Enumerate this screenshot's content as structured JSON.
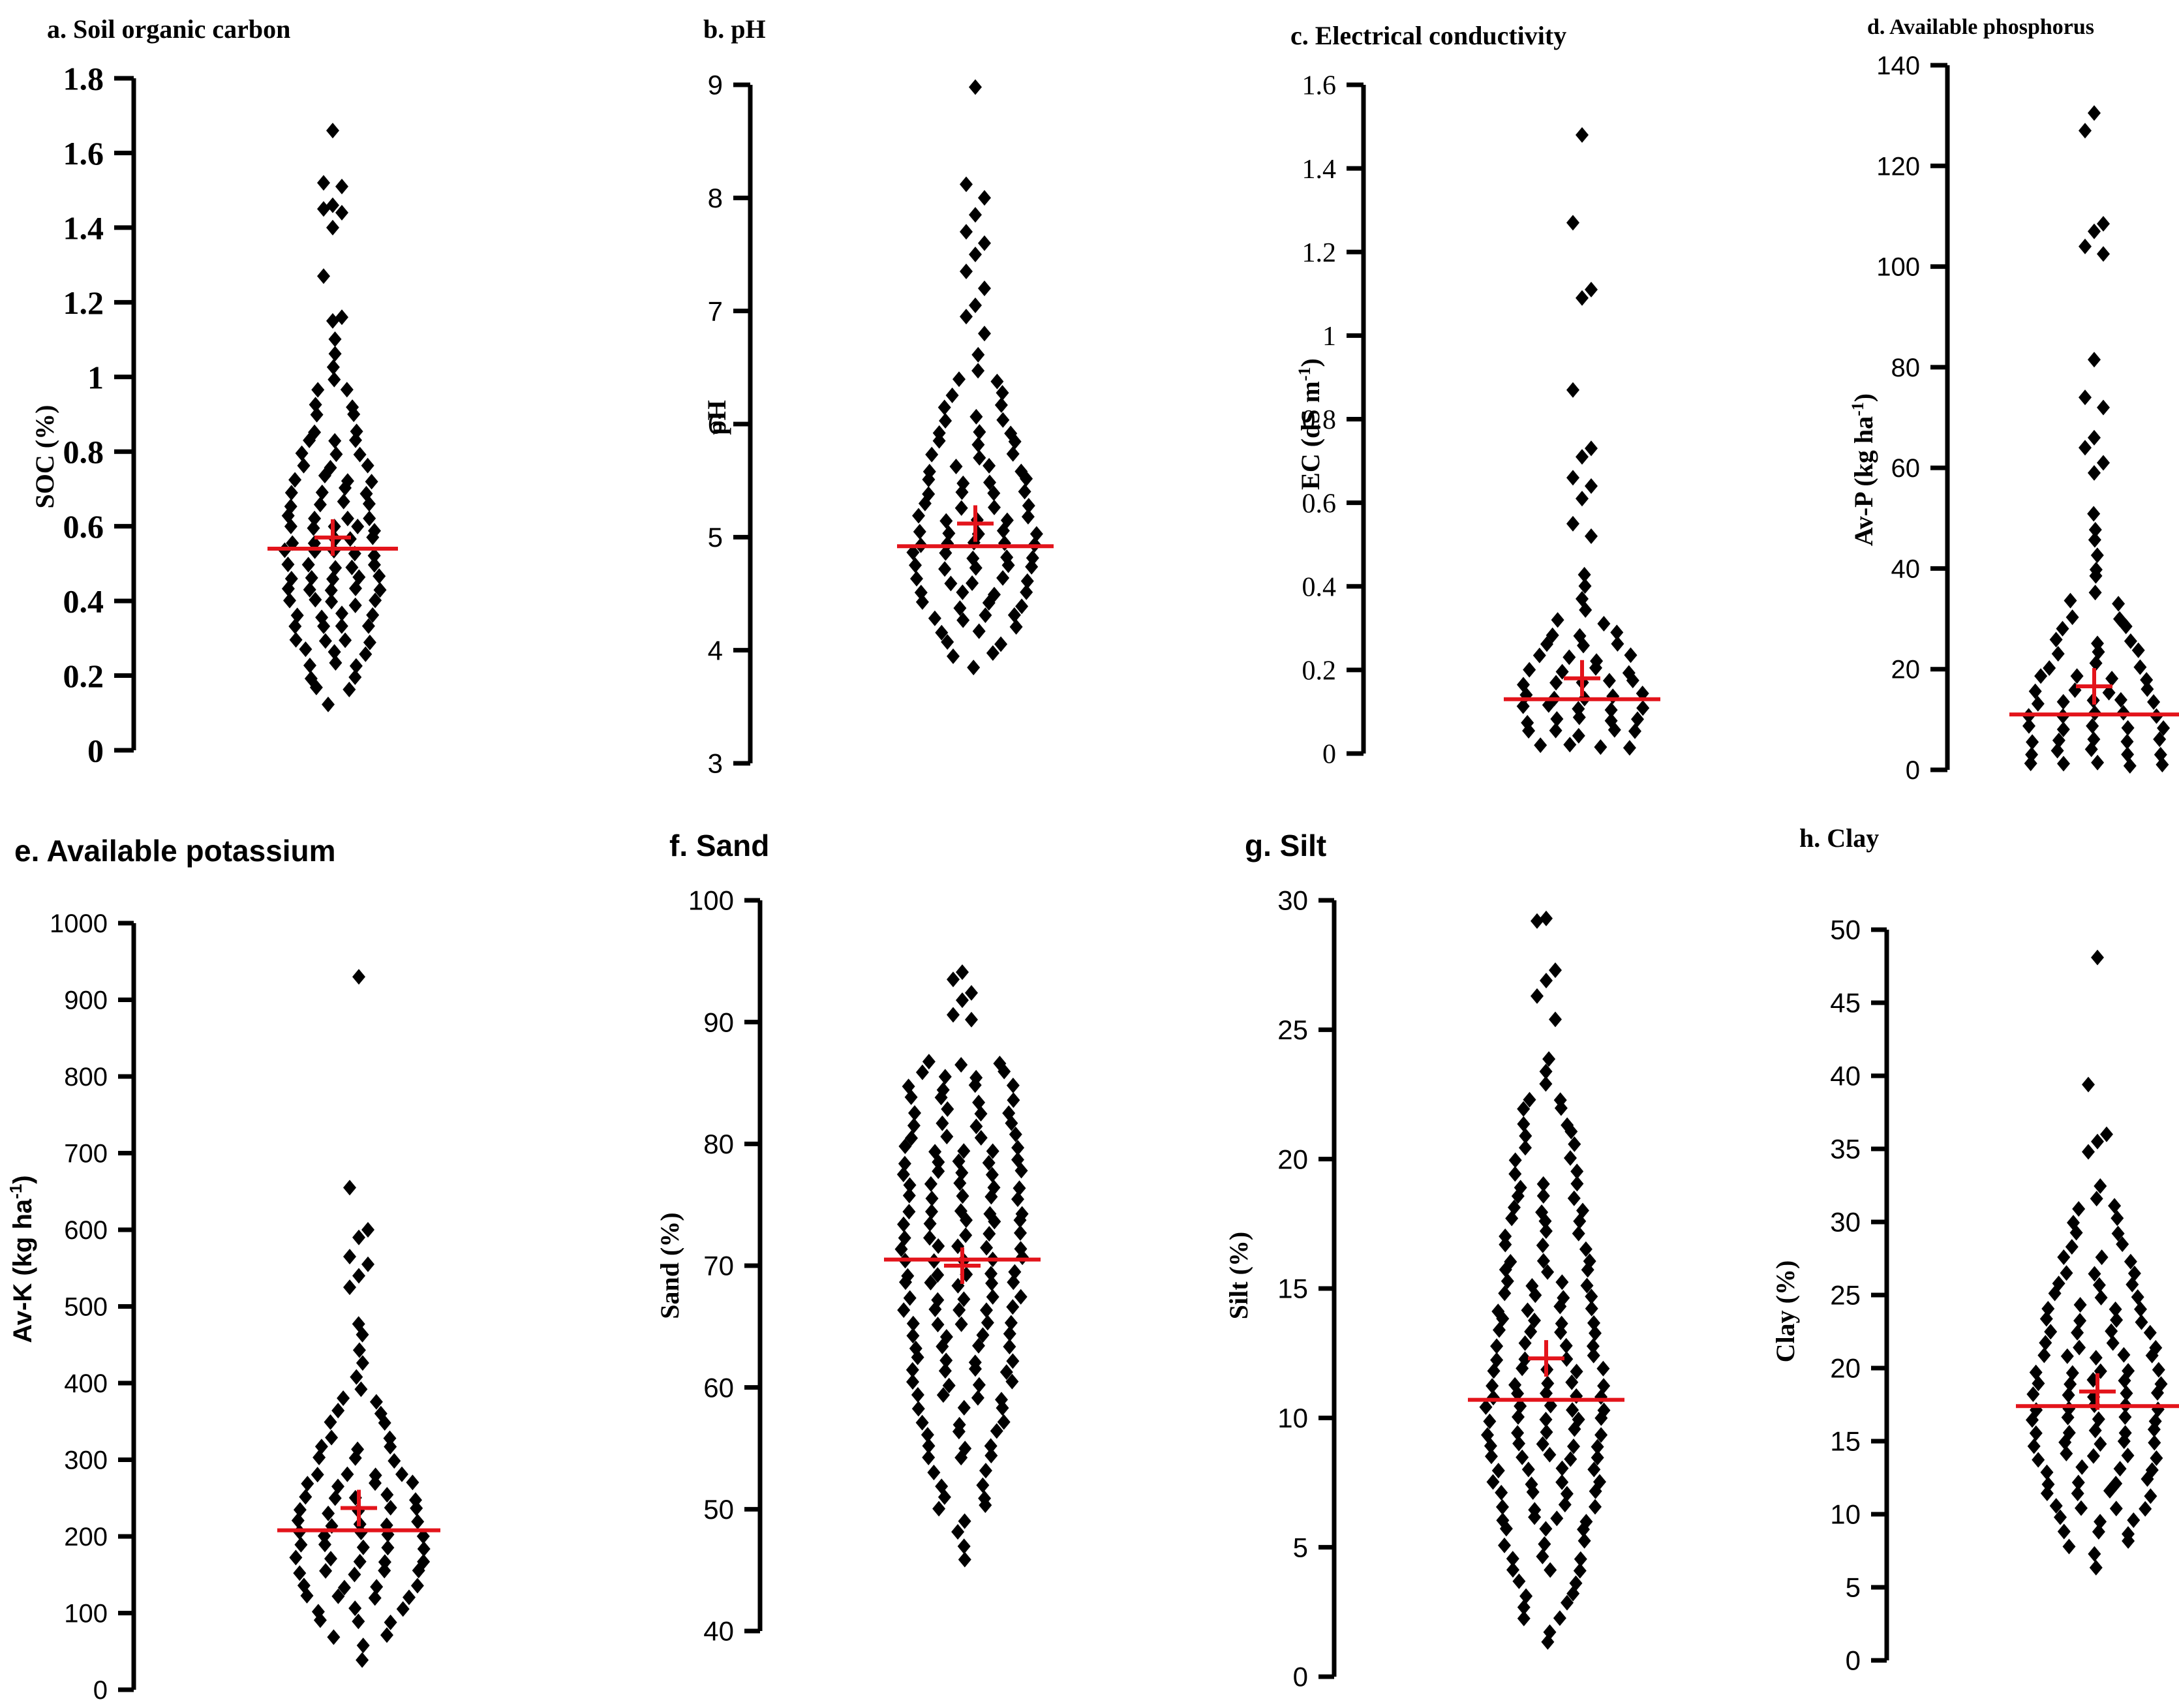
{
  "figure": {
    "type": "scatter",
    "description_marks": "beeswarm dot plots; black diamonds = individual samples, red horizontal line = median, red cross = mean"
  },
  "colors": {
    "points": "#000000",
    "median": "#e3141b",
    "mean": "#e3141b",
    "axis": "#000000"
  },
  "chart_data": [
    {
      "id": "a",
      "type": "scatter",
      "title": "a. Soil organic carbon",
      "ylabel": "SOC (%)",
      "ylabel_sup": "",
      "ylabel_tail": "",
      "ylim": [
        0,
        1.8
      ],
      "ticks": [
        "0",
        "0.2",
        "0.4",
        "0.6",
        "0.8",
        "1",
        "1.2",
        "1.4",
        "1.6",
        "1.8"
      ],
      "mean": 0.57,
      "median": 0.54,
      "outliers": [
        1.66,
        1.52,
        1.51,
        1.46,
        1.45,
        1.44,
        1.4,
        1.27,
        1.16,
        1.15
      ],
      "bulk": [
        [
          0.13,
          0.6
        ],
        [
          0.2,
          1.4
        ],
        [
          0.3,
          2.3
        ],
        [
          0.4,
          2.9
        ],
        [
          0.5,
          3.1
        ],
        [
          0.55,
          3.0
        ],
        [
          0.6,
          2.9
        ],
        [
          0.7,
          2.5
        ],
        [
          0.8,
          1.9
        ],
        [
          0.9,
          1.3
        ],
        [
          1.0,
          0.8
        ],
        [
          1.1,
          0.4
        ]
      ]
    },
    {
      "id": "b",
      "type": "scatter",
      "title": "b. pH",
      "ylabel": "pH",
      "ylabel_sup": "",
      "ylabel_tail": "",
      "ylim": [
        3,
        9
      ],
      "ticks": [
        "3",
        "4",
        "5",
        "6",
        "7",
        "8",
        "9"
      ],
      "mean": 5.12,
      "median": 4.92,
      "outliers": [
        8.98,
        8.12,
        8.0,
        7.85,
        7.7,
        7.6,
        7.5,
        7.35,
        7.2,
        7.05,
        6.95,
        6.8
      ],
      "bulk": [
        [
          3.85,
          0.5
        ],
        [
          4.1,
          1.7
        ],
        [
          4.4,
          2.6
        ],
        [
          4.7,
          3.0
        ],
        [
          4.95,
          3.1
        ],
        [
          5.2,
          2.9
        ],
        [
          5.5,
          2.5
        ],
        [
          5.8,
          2.0
        ],
        [
          6.1,
          1.6
        ],
        [
          6.4,
          1.0
        ],
        [
          6.6,
          0.5
        ]
      ]
    },
    {
      "id": "c",
      "type": "scatter",
      "title": "c. Electrical conductivity",
      "ylabel": "EC (dS m",
      "ylabel_sup": "-1",
      "ylabel_tail": ")",
      "ylim": [
        0,
        1.6
      ],
      "ticks": [
        "0",
        "0.2",
        "0.4",
        "0.6",
        "0.8",
        "1",
        "1.2",
        "1.4",
        "1.6"
      ],
      "mean": 0.18,
      "median": 0.13,
      "outliers": [
        1.48,
        1.27,
        1.11,
        1.09,
        0.87,
        0.73,
        0.71,
        0.66,
        0.64,
        0.61,
        0.55,
        0.52
      ],
      "bulk": [
        [
          0.02,
          2.4
        ],
        [
          0.06,
          3.2
        ],
        [
          0.1,
          3.2
        ],
        [
          0.15,
          3.0
        ],
        [
          0.2,
          2.7
        ],
        [
          0.25,
          2.2
        ],
        [
          0.3,
          1.5
        ],
        [
          0.35,
          0.8
        ],
        [
          0.4,
          0.5
        ],
        [
          0.45,
          0.3
        ]
      ]
    },
    {
      "id": "d",
      "type": "scatter",
      "title": "d. Available phosphorus",
      "ylabel": "Av-P (kg ha",
      "ylabel_sup": "-1",
      "ylabel_tail": ")",
      "ylim": [
        0,
        140
      ],
      "ticks": [
        "0",
        "20",
        "40",
        "60",
        "80",
        "100",
        "120",
        "140"
      ],
      "mean": 16.6,
      "median": 11.0,
      "outliers": [
        130.5,
        127,
        108.5,
        107,
        104,
        102.5,
        81.5,
        74,
        72,
        66,
        64,
        61,
        59
      ],
      "bulk": [
        [
          1,
          3.2
        ],
        [
          5,
          3.3
        ],
        [
          10,
          3.1
        ],
        [
          15,
          2.7
        ],
        [
          20,
          2.2
        ],
        [
          25,
          1.7
        ],
        [
          30,
          1.2
        ],
        [
          38,
          0.8
        ],
        [
          45,
          0.5
        ],
        [
          52,
          0.3
        ]
      ]
    },
    {
      "id": "e",
      "type": "scatter",
      "title": "e. Available potassium",
      "ylabel": "Av-K (kg ha",
      "ylabel_sup": "-1",
      "ylabel_tail": ")",
      "ylim": [
        0,
        1000
      ],
      "ticks": [
        "0",
        "100",
        "200",
        "300",
        "400",
        "500",
        "600",
        "700",
        "800",
        "900",
        "1000"
      ],
      "mean": 237,
      "median": 208,
      "outliers": [
        930,
        655,
        600,
        590,
        565,
        555,
        540,
        525
      ],
      "bulk": [
        [
          40,
          0.4
        ],
        [
          80,
          1.6
        ],
        [
          120,
          2.5
        ],
        [
          160,
          3.0
        ],
        [
          200,
          3.2
        ],
        [
          240,
          3.0
        ],
        [
          280,
          2.3
        ],
        [
          320,
          1.6
        ],
        [
          370,
          1.0
        ],
        [
          420,
          0.7
        ],
        [
          480,
          0.4
        ]
      ]
    },
    {
      "id": "f",
      "type": "scatter",
      "title": "f. Sand",
      "ylabel": "Sand (%)",
      "ylabel_sup": "",
      "ylabel_tail": "",
      "ylim": [
        40,
        100
      ],
      "ticks": [
        "40",
        "50",
        "60",
        "70",
        "80",
        "90",
        "100"
      ],
      "mean": 70.0,
      "median": 70.5,
      "outliers": [
        94.1,
        93.5,
        92.4,
        91.8,
        90.6,
        90.2
      ],
      "bulk": [
        [
          46,
          0.5
        ],
        [
          50,
          1.0
        ],
        [
          55,
          1.7
        ],
        [
          60,
          2.4
        ],
        [
          65,
          2.8
        ],
        [
          70,
          3.0
        ],
        [
          75,
          3.0
        ],
        [
          80,
          2.8
        ],
        [
          85,
          2.6
        ],
        [
          87,
          1.8
        ]
      ]
    },
    {
      "id": "g",
      "type": "scatter",
      "title": "g. Silt",
      "ylabel": "Silt (%)",
      "ylabel_sup": "",
      "ylabel_tail": "",
      "ylim": [
        0,
        30
      ],
      "ticks": [
        "0",
        "5",
        "10",
        "15",
        "20",
        "25",
        "30"
      ],
      "mean": 12.3,
      "median": 10.7,
      "outliers": [
        29.3,
        29.2,
        27.3,
        26.9,
        26.3,
        25.4
      ],
      "bulk": [
        [
          1.3,
          0.6
        ],
        [
          3,
          1.2
        ],
        [
          5,
          2.0
        ],
        [
          7,
          2.6
        ],
        [
          9,
          2.9
        ],
        [
          10.5,
          3.0
        ],
        [
          12,
          2.8
        ],
        [
          14,
          2.4
        ],
        [
          16,
          2.1
        ],
        [
          18,
          1.8
        ],
        [
          20,
          1.4
        ],
        [
          22,
          1.0
        ],
        [
          24,
          0.7
        ]
      ]
    },
    {
      "id": "h",
      "type": "scatter",
      "title": "h. Clay",
      "ylabel": "Clay (%)",
      "ylabel_sup": "",
      "ylabel_tail": "",
      "ylim": [
        0,
        50
      ],
      "ticks": [
        "0",
        "5",
        "10",
        "15",
        "20",
        "25",
        "30",
        "35",
        "40",
        "45",
        "50"
      ],
      "mean": 18.4,
      "median": 17.4,
      "outliers": [
        48.1,
        39.4,
        36.0,
        35.5,
        34.8
      ],
      "bulk": [
        [
          6.3,
          0.5
        ],
        [
          9,
          1.8
        ],
        [
          12,
          2.6
        ],
        [
          15,
          3.0
        ],
        [
          18,
          3.1
        ],
        [
          21,
          2.8
        ],
        [
          24,
          2.3
        ],
        [
          27,
          1.7
        ],
        [
          30,
          1.1
        ],
        [
          33,
          0.6
        ]
      ]
    }
  ]
}
